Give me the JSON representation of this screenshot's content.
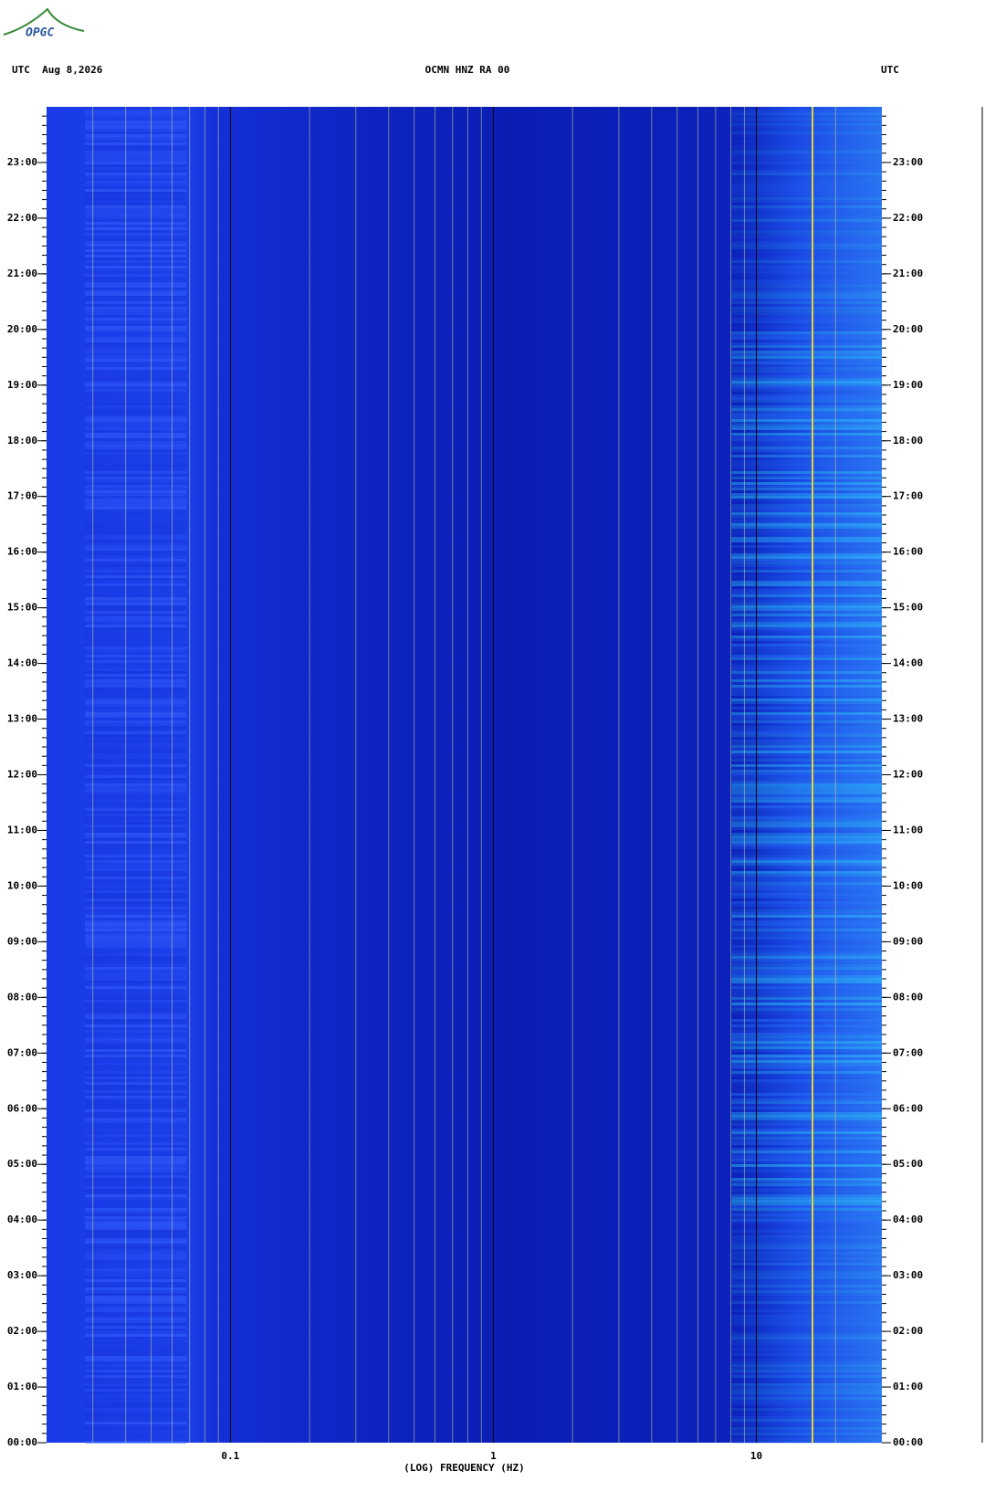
{
  "header": {
    "logo": "OPGC",
    "left": "UTC  Aug 8,2026",
    "center": "OCMN HNZ RA 00",
    "right": "UTC"
  },
  "chart_data": {
    "type": "spectrogram",
    "xlabel": "(LOG) FREQUENCY (HZ)",
    "xscale": "log",
    "xlim": [
      0.02,
      30
    ],
    "xticks": [
      0.1,
      1,
      10
    ],
    "ylim": [
      0,
      24
    ],
    "yticks": [
      {
        "value": 0,
        "label": "00:00"
      },
      {
        "value": 1,
        "label": "01:00"
      },
      {
        "value": 2,
        "label": "02:00"
      },
      {
        "value": 3,
        "label": "03:00"
      },
      {
        "value": 4,
        "label": "04:00"
      },
      {
        "value": 5,
        "label": "05:00"
      },
      {
        "value": 6,
        "label": "06:00"
      },
      {
        "value": 7,
        "label": "07:00"
      },
      {
        "value": 8,
        "label": "08:00"
      },
      {
        "value": 9,
        "label": "09:00"
      },
      {
        "value": 10,
        "label": "10:00"
      },
      {
        "value": 11,
        "label": "11:00"
      },
      {
        "value": 12,
        "label": "12:00"
      },
      {
        "value": 13,
        "label": "13:00"
      },
      {
        "value": 14,
        "label": "14:00"
      },
      {
        "value": 15,
        "label": "15:00"
      },
      {
        "value": 16,
        "label": "16:00"
      },
      {
        "value": 17,
        "label": "17:00"
      },
      {
        "value": 18,
        "label": "18:00"
      },
      {
        "value": 19,
        "label": "19:00"
      },
      {
        "value": 20,
        "label": "20:00"
      },
      {
        "value": 21,
        "label": "21:00"
      },
      {
        "value": 22,
        "label": "22:00"
      },
      {
        "value": 23,
        "label": "23:00"
      }
    ]
  }
}
